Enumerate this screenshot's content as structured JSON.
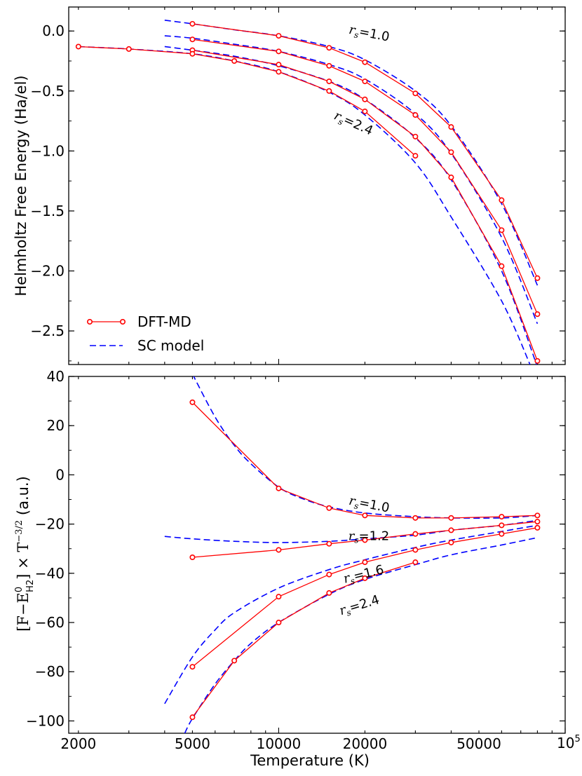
{
  "chart_data": [
    {
      "type": "line",
      "panel": "top",
      "xscale": "log",
      "xlim": [
        1850,
        100000
      ],
      "ylim": [
        -2.78,
        0.2
      ],
      "ylabel": "Helmholtz Free Energy (Ha/el)",
      "xlabel": "",
      "y_ticks": [
        0.0,
        -0.5,
        -1.0,
        -1.5,
        -2.0,
        -2.5
      ],
      "y_tick_labels": [
        "0.0",
        "−0.5",
        "−1.0",
        "−1.5",
        "−2.0",
        "−2.5"
      ],
      "legend": {
        "position": "bottom-left",
        "entries": [
          {
            "label": "DFT-MD",
            "color": "#ff0000",
            "style": "solid-circle"
          },
          {
            "label": "SC model",
            "color": "#0000ff",
            "style": "dashed"
          }
        ]
      },
      "annotations": [
        {
          "label_main": "r",
          "label_sub": "s",
          "label_val": "=1.0",
          "at": [
            17500,
            -0.02
          ],
          "rotation": 11
        },
        {
          "label_main": "r",
          "label_sub": "s",
          "label_val": "=2.4",
          "at": [
            15500,
            -0.73
          ],
          "rotation": 24
        }
      ],
      "dft_series": [
        {
          "name": "rs=1.0",
          "x": [
            5000,
            10000,
            15000,
            20000,
            30000,
            40000,
            60000,
            80000
          ],
          "y": [
            0.06,
            -0.04,
            -0.14,
            -0.26,
            -0.52,
            -0.8,
            -1.41,
            -2.06
          ]
        },
        {
          "name": "rs=1.2",
          "x": [
            5000,
            10000,
            15000,
            20000,
            30000,
            40000,
            60000,
            80000
          ],
          "y": [
            -0.07,
            -0.17,
            -0.29,
            -0.42,
            -0.7,
            -1.01,
            -1.66,
            -2.36
          ]
        },
        {
          "name": "rs=1.6",
          "x": [
            5000,
            10000,
            15000,
            20000,
            30000,
            40000,
            60000,
            80000
          ],
          "y": [
            -0.16,
            -0.28,
            -0.42,
            -0.57,
            -0.88,
            -1.22,
            -1.96,
            -2.75
          ]
        },
        {
          "name": "rs=2.4",
          "x": [
            2000,
            3000,
            5000,
            7000,
            10000,
            15000,
            20000,
            30000
          ],
          "y": [
            -0.13,
            -0.15,
            -0.19,
            -0.25,
            -0.34,
            -0.5,
            -0.67,
            -1.04
          ]
        }
      ],
      "sc_series": [
        {
          "name": "rs=1.0",
          "x": [
            4000,
            5000,
            7000,
            10000,
            15000,
            20000,
            30000,
            40000,
            60000,
            80000
          ],
          "y": [
            0.09,
            0.06,
            0.01,
            -0.04,
            -0.13,
            -0.24,
            -0.5,
            -0.79,
            -1.44,
            -2.12
          ]
        },
        {
          "name": "rs=1.2",
          "x": [
            4000,
            5000,
            7000,
            10000,
            15000,
            20000,
            30000,
            40000,
            60000,
            80000
          ],
          "y": [
            -0.04,
            -0.06,
            -0.11,
            -0.17,
            -0.28,
            -0.4,
            -0.69,
            -1.02,
            -1.72,
            -2.44
          ]
        },
        {
          "name": "rs=1.6",
          "x": [
            4000,
            5000,
            7000,
            10000,
            15000,
            20000,
            30000,
            40000,
            60000,
            80000
          ],
          "y": [
            -0.13,
            -0.16,
            -0.21,
            -0.29,
            -0.42,
            -0.57,
            -0.89,
            -1.24,
            -2.0,
            -2.8
          ]
        },
        {
          "name": "rs=2.4",
          "x": [
            2000,
            3000,
            5000,
            7000,
            10000,
            15000,
            20000,
            30000,
            40000,
            60000,
            76000
          ],
          "y": [
            -0.13,
            -0.15,
            -0.19,
            -0.25,
            -0.34,
            -0.51,
            -0.7,
            -1.1,
            -1.55,
            -2.25,
            -2.8
          ]
        }
      ]
    },
    {
      "type": "line",
      "panel": "bottom",
      "xscale": "log",
      "xlim": [
        1850,
        100000
      ],
      "ylim": [
        -105,
        40
      ],
      "ylabel_main": "[F−E",
      "ylabel_sup": "0",
      "ylabel_sub": "H2",
      "ylabel_mid": "] × T",
      "ylabel_exp": "−3/2",
      "ylabel_units": "(a.u.)",
      "xlabel": "Temperature (K)",
      "x_ticks": [
        2000,
        5000,
        10000,
        20000,
        50000
      ],
      "x_tick_labels": [
        "2000",
        "5000",
        "10000",
        "20000",
        "50000"
      ],
      "x_end_label_base": "10",
      "x_end_label_exp": "5",
      "y_ticks": [
        40,
        20,
        0,
        -20,
        -40,
        -60,
        -80,
        -100
      ],
      "y_tick_labels": [
        "40",
        "20",
        "0",
        "−20",
        "−40",
        "−60",
        "−80",
        "−100"
      ],
      "annotations": [
        {
          "label_main": "r",
          "label_sub": "s",
          "label_val": "=1.0",
          "at": [
            17500,
            -12
          ],
          "rotation": 11
        },
        {
          "label_main": "r",
          "label_sub": "s",
          "label_val": "=1.2",
          "at": [
            17500,
            -26.5
          ],
          "rotation": 0
        },
        {
          "label_main": "r",
          "label_sub": "s",
          "label_val": "=1.6",
          "at": [
            17000,
            -44
          ],
          "rotation": -14
        },
        {
          "label_main": "r",
          "label_sub": "s",
          "label_val": "=2.4",
          "at": [
            16500,
            -57
          ],
          "rotation": -17
        }
      ],
      "dft_series": [
        {
          "name": "rs=1.0",
          "x": [
            5000,
            10000,
            15000,
            20000,
            30000,
            40000,
            60000,
            80000
          ],
          "y": [
            29.5,
            -5.5,
            -13.5,
            -16.5,
            -17.5,
            -17.5,
            -17.0,
            -16.5
          ]
        },
        {
          "name": "rs=1.2",
          "x": [
            5000,
            10000,
            15000,
            20000,
            30000,
            40000,
            60000,
            80000
          ],
          "y": [
            -33.5,
            -30.5,
            -28.0,
            -26.5,
            -24.0,
            -22.5,
            -20.5,
            -19.0
          ]
        },
        {
          "name": "rs=1.6",
          "x": [
            5000,
            10000,
            15000,
            20000,
            30000,
            40000,
            60000,
            80000
          ],
          "y": [
            -78.0,
            -49.5,
            -40.5,
            -35.5,
            -30.5,
            -27.5,
            -24.0,
            -21.5
          ]
        },
        {
          "name": "rs=2.4",
          "x": [
            5000,
            7000,
            10000,
            15000,
            20000,
            30000
          ],
          "y": [
            -98.5,
            -75.5,
            -60.0,
            -48.0,
            -42.0,
            -35.5
          ]
        }
      ],
      "sc_series": [
        {
          "name": "rs=1.0",
          "x": [
            5000,
            6000,
            7000,
            8000,
            10000,
            12000,
            15000,
            20000,
            30000,
            40000,
            60000,
            80000
          ],
          "y": [
            41.0,
            23.5,
            12.0,
            4.5,
            -5.0,
            -9.5,
            -13.0,
            -15.5,
            -17.0,
            -17.5,
            -17.5,
            -16.5
          ]
        },
        {
          "name": "rs=1.2",
          "x": [
            4000,
            5000,
            7000,
            10000,
            15000,
            20000,
            30000,
            40000,
            60000,
            80000
          ],
          "y": [
            -25.0,
            -26.0,
            -27.0,
            -27.5,
            -27.0,
            -26.0,
            -24.5,
            -22.5,
            -20.5,
            -18.5
          ]
        },
        {
          "name": "rs=1.6",
          "x": [
            4000,
            5000,
            6000,
            7000,
            10000,
            15000,
            20000,
            30000,
            40000,
            60000,
            80000
          ],
          "y": [
            -93.0,
            -74.0,
            -63.0,
            -56.0,
            -46.0,
            -38.5,
            -34.5,
            -29.5,
            -26.5,
            -23.0,
            -20.5
          ]
        },
        {
          "name": "rs=2.4",
          "x": [
            4700,
            5000,
            6000,
            7000,
            8000,
            10000,
            15000,
            20000,
            30000,
            40000,
            60000,
            80000
          ],
          "y": [
            -105.0,
            -99.0,
            -85.0,
            -75.5,
            -68.5,
            -60.0,
            -48.5,
            -42.5,
            -36.5,
            -32.5,
            -28.5,
            -25.5
          ]
        }
      ]
    }
  ]
}
